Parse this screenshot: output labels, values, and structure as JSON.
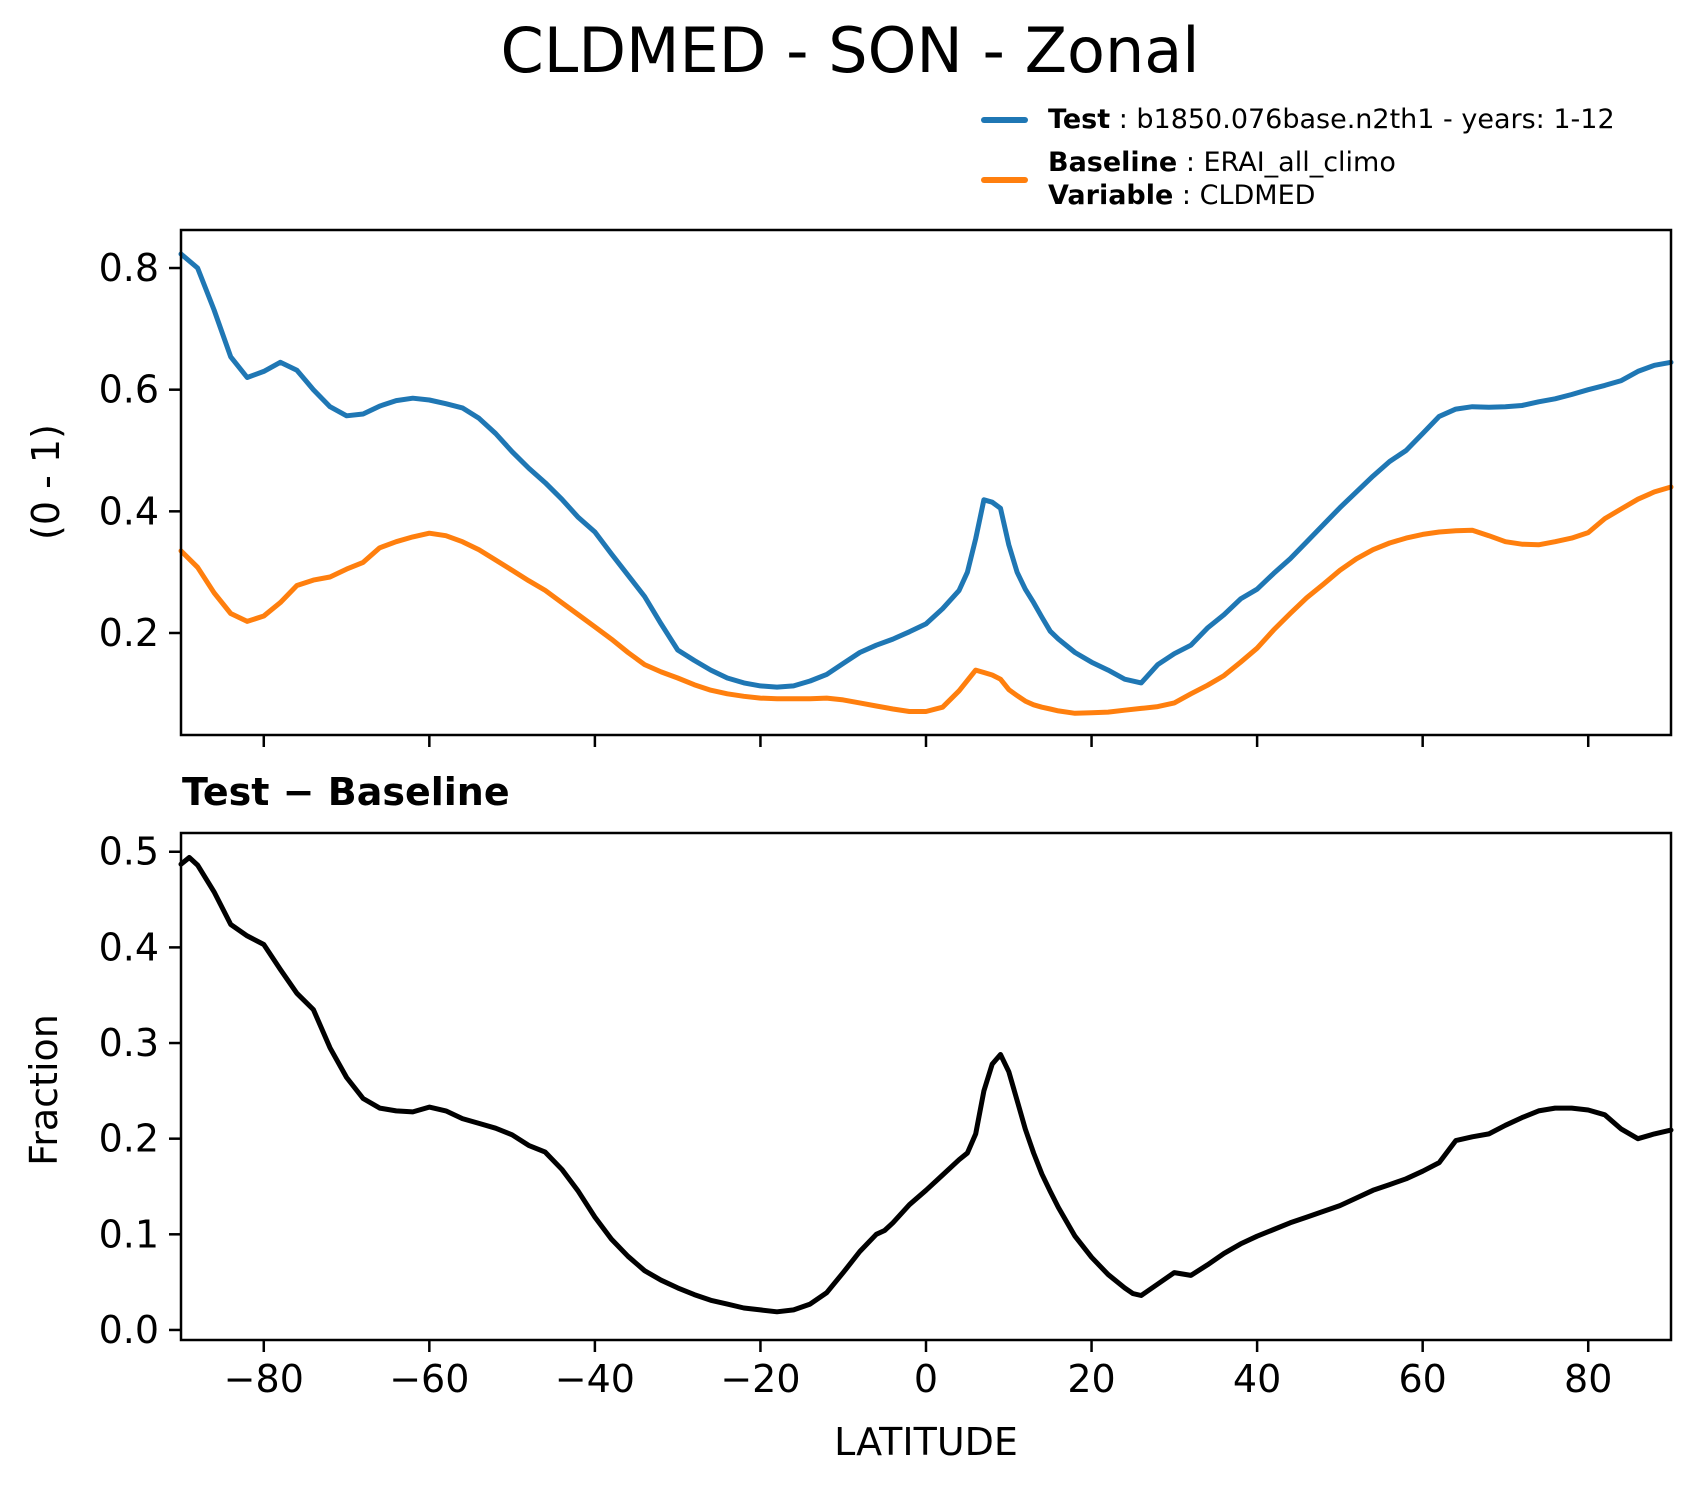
{
  "figure": {
    "title": "CLDMED - SON - Zonal",
    "background": "#ffffff"
  },
  "legend": {
    "test": {
      "name": "Test",
      "rest": " : b1850.076base.n2th1 - years: 1-12",
      "color": "#1f77b4"
    },
    "baseline": {
      "name": "Baseline",
      "rest": " : ERAI_all_climo",
      "color": "#ff7f0e"
    },
    "variable": {
      "name": "Variable",
      "rest": " : CLDMED"
    }
  },
  "chart_data": [
    {
      "type": "line",
      "title": "",
      "ylabel": "(0 - 1)",
      "xlabel": "",
      "grid": false,
      "legend_position": "upper right of figure, no frame",
      "xlim": [
        -90,
        90
      ],
      "ylim": [
        0.0323,
        0.8625
      ],
      "xticks": [
        {
          "v": -80,
          "label": ""
        },
        {
          "v": -60,
          "label": ""
        },
        {
          "v": -40,
          "label": ""
        },
        {
          "v": -20,
          "label": ""
        },
        {
          "v": 0,
          "label": ""
        },
        {
          "v": 20,
          "label": ""
        },
        {
          "v": 40,
          "label": ""
        },
        {
          "v": 60,
          "label": ""
        },
        {
          "v": 80,
          "label": ""
        }
      ],
      "yticks": [
        {
          "v": 0.2,
          "label": "0.2"
        },
        {
          "v": 0.4,
          "label": "0.4"
        },
        {
          "v": 0.6,
          "label": "0.6"
        },
        {
          "v": 0.8,
          "label": "0.8"
        }
      ],
      "series": [
        {
          "name": "Test",
          "color": "#1f77b4",
          "width": 5,
          "x": [
            -90,
            -88,
            -86,
            -84,
            -82,
            -80,
            -78,
            -76,
            -74,
            -72,
            -70,
            -68,
            -66,
            -64,
            -62,
            -60,
            -58,
            -56,
            -54,
            -52,
            -50,
            -48,
            -46,
            -44,
            -42,
            -40,
            -38,
            -36,
            -34,
            -32,
            -30,
            -28,
            -26,
            -24,
            -22,
            -20,
            -18,
            -16,
            -14,
            -12,
            -10,
            -8,
            -6,
            -4,
            -2,
            0,
            2,
            4,
            5,
            6,
            7,
            8,
            9,
            10,
            11,
            12,
            13,
            14,
            15,
            16,
            18,
            20,
            22,
            24,
            26,
            28,
            30,
            32,
            34,
            36,
            38,
            40,
            42,
            44,
            46,
            48,
            50,
            52,
            54,
            56,
            58,
            60,
            62,
            64,
            66,
            68,
            70,
            72,
            74,
            76,
            78,
            80,
            82,
            84,
            86,
            88,
            90
          ],
          "values": [
            0.823,
            0.8,
            0.731,
            0.654,
            0.62,
            0.63,
            0.645,
            0.632,
            0.6,
            0.572,
            0.557,
            0.56,
            0.573,
            0.582,
            0.586,
            0.583,
            0.577,
            0.57,
            0.553,
            0.528,
            0.498,
            0.471,
            0.447,
            0.42,
            0.39,
            0.366,
            0.33,
            0.295,
            0.26,
            0.215,
            0.172,
            0.155,
            0.139,
            0.126,
            0.118,
            0.113,
            0.111,
            0.113,
            0.121,
            0.132,
            0.15,
            0.168,
            0.18,
            0.19,
            0.202,
            0.215,
            0.24,
            0.27,
            0.3,
            0.355,
            0.419,
            0.415,
            0.405,
            0.345,
            0.3,
            0.272,
            0.25,
            0.226,
            0.203,
            0.19,
            0.168,
            0.152,
            0.139,
            0.124,
            0.118,
            0.148,
            0.166,
            0.18,
            0.208,
            0.23,
            0.256,
            0.272,
            0.298,
            0.322,
            0.35,
            0.378,
            0.406,
            0.432,
            0.458,
            0.482,
            0.5,
            0.528,
            0.556,
            0.568,
            0.572,
            0.571,
            0.572,
            0.574,
            0.58,
            0.585,
            0.592,
            0.6,
            0.607,
            0.615,
            0.63,
            0.64,
            0.645
          ]
        },
        {
          "name": "Baseline",
          "color": "#ff7f0e",
          "width": 5,
          "x": [
            -90,
            -88,
            -86,
            -84,
            -82,
            -80,
            -78,
            -76,
            -74,
            -72,
            -70,
            -68,
            -66,
            -64,
            -62,
            -60,
            -58,
            -56,
            -54,
            -52,
            -50,
            -48,
            -46,
            -44,
            -42,
            -40,
            -38,
            -36,
            -34,
            -32,
            -30,
            -28,
            -26,
            -24,
            -22,
            -20,
            -18,
            -16,
            -14,
            -12,
            -10,
            -8,
            -6,
            -4,
            -2,
            0,
            2,
            4,
            5,
            6,
            7,
            8,
            9,
            10,
            11,
            12,
            13,
            14,
            15,
            16,
            18,
            20,
            22,
            24,
            26,
            28,
            30,
            32,
            34,
            36,
            38,
            40,
            42,
            44,
            46,
            48,
            50,
            52,
            54,
            56,
            58,
            60,
            62,
            64,
            66,
            68,
            70,
            72,
            74,
            76,
            78,
            80,
            82,
            84,
            86,
            88,
            90
          ],
          "values": [
            0.335,
            0.308,
            0.266,
            0.232,
            0.219,
            0.228,
            0.25,
            0.278,
            0.287,
            0.292,
            0.305,
            0.316,
            0.34,
            0.35,
            0.358,
            0.364,
            0.36,
            0.35,
            0.337,
            0.32,
            0.303,
            0.286,
            0.27,
            0.25,
            0.23,
            0.21,
            0.19,
            0.168,
            0.148,
            0.136,
            0.126,
            0.115,
            0.106,
            0.1,
            0.096,
            0.093,
            0.092,
            0.092,
            0.092,
            0.093,
            0.09,
            0.085,
            0.08,
            0.075,
            0.071,
            0.071,
            0.078,
            0.105,
            0.122,
            0.139,
            0.135,
            0.131,
            0.124,
            0.107,
            0.097,
            0.088,
            0.082,
            0.078,
            0.075,
            0.072,
            0.068,
            0.069,
            0.07,
            0.073,
            0.076,
            0.079,
            0.085,
            0.1,
            0.114,
            0.13,
            0.152,
            0.175,
            0.205,
            0.232,
            0.258,
            0.28,
            0.303,
            0.322,
            0.337,
            0.348,
            0.356,
            0.362,
            0.366,
            0.368,
            0.369,
            0.36,
            0.35,
            0.346,
            0.345,
            0.35,
            0.356,
            0.365,
            0.388,
            0.404,
            0.42,
            0.432,
            0.44
          ]
        }
      ]
    },
    {
      "type": "line",
      "title": "Test − Baseline",
      "ylabel": "Fraction",
      "xlabel": "LATITUDE",
      "grid": false,
      "xlim": [
        -90,
        90
      ],
      "ylim": [
        -0.0105,
        0.5196
      ],
      "xticks": [
        {
          "v": -80,
          "label": "−80"
        },
        {
          "v": -60,
          "label": "−60"
        },
        {
          "v": -40,
          "label": "−40"
        },
        {
          "v": -20,
          "label": "−20"
        },
        {
          "v": 0,
          "label": "0"
        },
        {
          "v": 20,
          "label": "20"
        },
        {
          "v": 40,
          "label": "40"
        },
        {
          "v": 60,
          "label": "60"
        },
        {
          "v": 80,
          "label": "80"
        }
      ],
      "yticks": [
        {
          "v": 0.0,
          "label": "0.0"
        },
        {
          "v": 0.1,
          "label": "0.1"
        },
        {
          "v": 0.2,
          "label": "0.2"
        },
        {
          "v": 0.3,
          "label": "0.3"
        },
        {
          "v": 0.4,
          "label": "0.4"
        },
        {
          "v": 0.5,
          "label": "0.5"
        }
      ],
      "series": [
        {
          "name": "Test minus Baseline",
          "color": "#000000",
          "width": 5,
          "x": [
            -90,
            -89,
            -88,
            -86,
            -84,
            -82,
            -80,
            -78,
            -76,
            -74,
            -72,
            -70,
            -68,
            -66,
            -64,
            -62,
            -60,
            -58,
            -56,
            -54,
            -52,
            -50,
            -48,
            -46,
            -44,
            -42,
            -40,
            -38,
            -36,
            -34,
            -32,
            -30,
            -28,
            -26,
            -24,
            -22,
            -20,
            -18,
            -16,
            -14,
            -12,
            -10,
            -8,
            -6,
            -5,
            -4,
            -2,
            0,
            2,
            4,
            5,
            6,
            7,
            8,
            9,
            10,
            11,
            12,
            13,
            14,
            15,
            16,
            18,
            20,
            22,
            24,
            25,
            26,
            28,
            30,
            32,
            34,
            36,
            38,
            40,
            42,
            44,
            46,
            48,
            50,
            52,
            54,
            56,
            58,
            60,
            62,
            64,
            66,
            68,
            70,
            72,
            74,
            76,
            78,
            80,
            82,
            84,
            86,
            88,
            90
          ],
          "values": [
            0.487,
            0.494,
            0.486,
            0.458,
            0.424,
            0.412,
            0.403,
            0.377,
            0.352,
            0.335,
            0.295,
            0.264,
            0.242,
            0.232,
            0.229,
            0.228,
            0.233,
            0.229,
            0.221,
            0.216,
            0.211,
            0.204,
            0.193,
            0.186,
            0.168,
            0.145,
            0.118,
            0.095,
            0.077,
            0.062,
            0.052,
            0.044,
            0.037,
            0.031,
            0.027,
            0.023,
            0.021,
            0.019,
            0.021,
            0.027,
            0.039,
            0.06,
            0.082,
            0.1,
            0.104,
            0.112,
            0.131,
            0.146,
            0.162,
            0.178,
            0.185,
            0.205,
            0.25,
            0.278,
            0.288,
            0.27,
            0.24,
            0.21,
            0.185,
            0.163,
            0.145,
            0.128,
            0.098,
            0.076,
            0.058,
            0.044,
            0.038,
            0.036,
            0.048,
            0.06,
            0.057,
            0.068,
            0.08,
            0.09,
            0.098,
            0.105,
            0.112,
            0.118,
            0.124,
            0.13,
            0.138,
            0.146,
            0.152,
            0.158,
            0.166,
            0.175,
            0.198,
            0.202,
            0.205,
            0.214,
            0.222,
            0.229,
            0.232,
            0.232,
            0.23,
            0.225,
            0.21,
            0.2,
            0.205,
            0.209
          ]
        }
      ]
    }
  ]
}
